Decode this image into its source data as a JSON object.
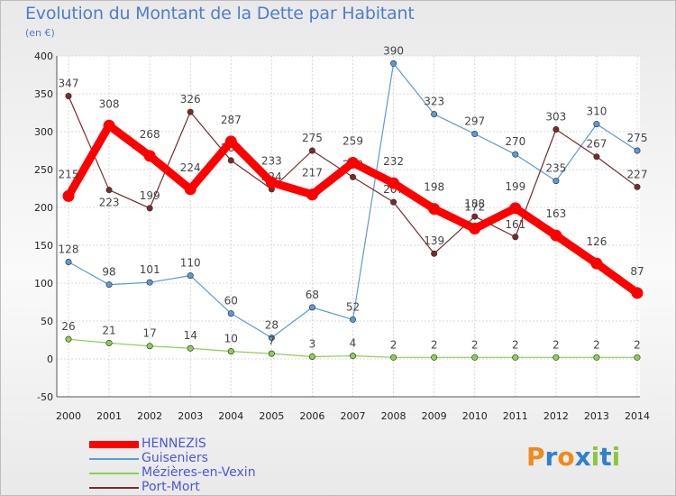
{
  "title": "Evolution du Montant de la Dette par Habitant",
  "unit_label": "(en €)",
  "logo": {
    "letters": [
      "P",
      "r",
      "o",
      "x",
      "i",
      "t",
      "i"
    ],
    "colors": [
      "#f08a1d",
      "#2e83c8",
      "#f08a1d",
      "#2e83c8",
      "#8cc63f",
      "#2e83c8",
      "#8cc63f"
    ]
  },
  "chart_data": {
    "type": "line",
    "title": "Evolution du Montant de la Dette par Habitant",
    "ylabel": "(en €)",
    "x": [
      "2000",
      "2001",
      "2002",
      "2003",
      "2004",
      "2005",
      "2006",
      "2007",
      "2008",
      "2009",
      "2010",
      "2011",
      "2012",
      "2013",
      "2014"
    ],
    "ylim": [
      -50,
      400
    ],
    "yticks": [
      -50,
      0,
      50,
      100,
      150,
      200,
      250,
      300,
      350,
      400
    ],
    "grid": true,
    "legend_position": "bottom-left",
    "series": [
      {
        "name": "HENNEZIS",
        "color": "#ff0000",
        "values": [
          215,
          308,
          268,
          224,
          287,
          233,
          217,
          259,
          232,
          198,
          172,
          199,
          163,
          126,
          87
        ]
      },
      {
        "name": "Guiseniers",
        "color": "#5b9bd5",
        "values": [
          128,
          98,
          101,
          110,
          60,
          28,
          68,
          52,
          390,
          323,
          297,
          270,
          235,
          310,
          275
        ]
      },
      {
        "name": "Mézières-en-Vexin",
        "color": "#8cd050",
        "values": [
          26,
          21,
          17,
          14,
          10,
          7,
          3,
          4,
          2,
          2,
          2,
          2,
          2,
          2,
          2
        ]
      },
      {
        "name": "Port-Mort",
        "color": "#7a2a2a",
        "values": [
          347,
          223,
          199,
          326,
          262,
          224,
          275,
          240,
          207,
          139,
          188,
          161,
          303,
          267,
          227
        ]
      }
    ]
  }
}
